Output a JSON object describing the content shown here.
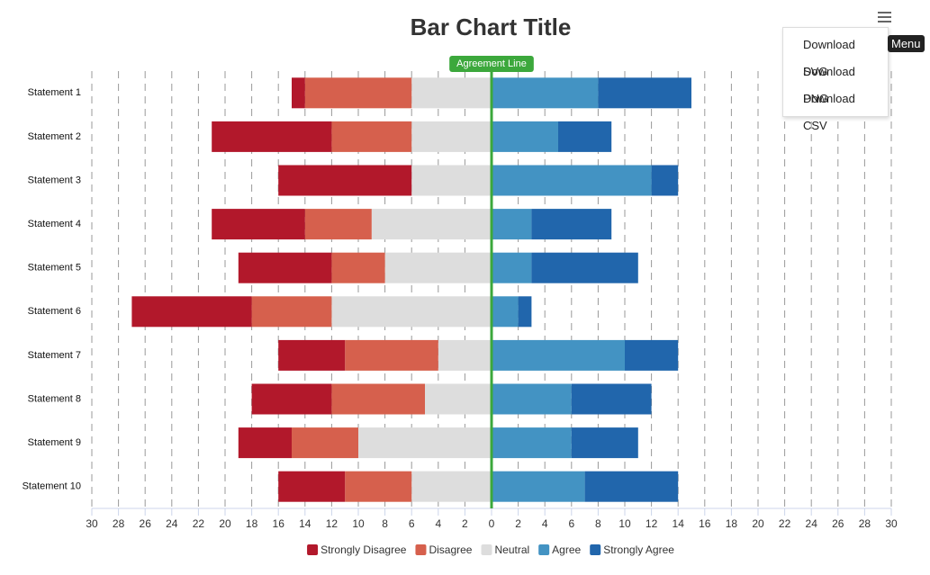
{
  "chart_data": {
    "type": "diverging-bar",
    "title": "Bar Chart Title",
    "categories": [
      "Statement 1",
      "Statement 2",
      "Statement 3",
      "Statement 4",
      "Statement 5",
      "Statement 6",
      "Statement 7",
      "Statement 8",
      "Statement 9",
      "Statement 10"
    ],
    "series": [
      {
        "name": "Strongly Disagree",
        "color": "#b2182b",
        "values": [
          -1,
          -9,
          -10,
          -7,
          -7,
          -9,
          -5,
          -6,
          -4,
          -5
        ]
      },
      {
        "name": "Disagree",
        "color": "#d6604d",
        "values": [
          -8,
          -6,
          0,
          -5,
          -4,
          -6,
          -7,
          -7,
          -5,
          -5
        ]
      },
      {
        "name": "Neutral",
        "color": "#dddddd",
        "values": [
          -6,
          -6,
          -6,
          -9,
          -8,
          -12,
          -4,
          -5,
          -10,
          -6
        ]
      },
      {
        "name": "Agree",
        "color": "#4393c3",
        "values": [
          8,
          5,
          12,
          3,
          3,
          2,
          10,
          6,
          6,
          7
        ]
      },
      {
        "name": "Strongly Agree",
        "color": "#2166ac",
        "values": [
          7,
          4,
          2,
          6,
          8,
          1,
          4,
          6,
          5,
          7
        ]
      }
    ],
    "xlim": [
      -30,
      30
    ],
    "xticks": [
      {
        "value": -30,
        "label": "30"
      },
      {
        "value": -28,
        "label": "28"
      },
      {
        "value": -26,
        "label": "26"
      },
      {
        "value": -24,
        "label": "24"
      },
      {
        "value": -22,
        "label": "22"
      },
      {
        "value": -20,
        "label": "20"
      },
      {
        "value": -18,
        "label": "18"
      },
      {
        "value": -16,
        "label": "16"
      },
      {
        "value": -14,
        "label": "14"
      },
      {
        "value": -12,
        "label": "12"
      },
      {
        "value": -10,
        "label": "10"
      },
      {
        "value": -8,
        "label": "8"
      },
      {
        "value": -6,
        "label": "6"
      },
      {
        "value": -4,
        "label": "4"
      },
      {
        "value": -2,
        "label": "2"
      },
      0,
      2,
      4,
      6,
      8,
      10,
      12,
      14,
      16,
      18,
      20,
      22,
      24,
      26,
      28,
      30
    ],
    "grid": true,
    "plot_line": {
      "value": 0,
      "label": "Agreement Line",
      "color": "#3ca83c"
    },
    "legend": "bottom"
  },
  "menu": {
    "tooltip": "Menu",
    "items": [
      "Download SVG",
      "Download PNG",
      "Download CSV"
    ]
  }
}
